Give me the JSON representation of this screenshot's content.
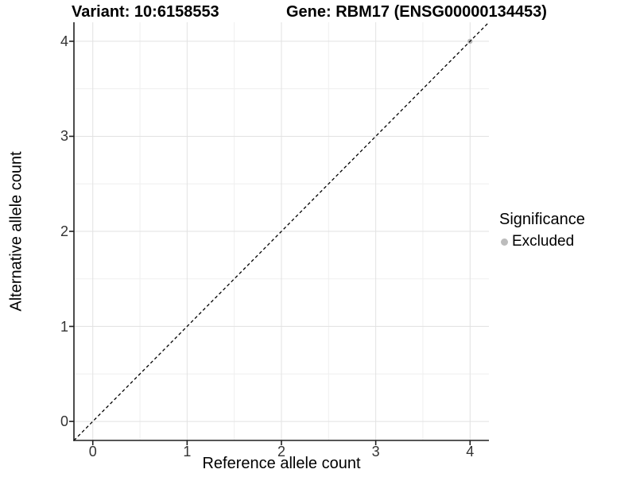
{
  "header": {
    "title_left": "Variant: 10:6158553",
    "title_right": "Gene: RBM17 (ENSG00000134453)"
  },
  "axes": {
    "x_label": "Reference allele count",
    "y_label": "Alternative allele count"
  },
  "legend": {
    "title": "Significance",
    "items": [
      {
        "label": "Excluded",
        "color": "#bcbcbc"
      }
    ]
  },
  "colors": {
    "background": "#ffffff",
    "grid_major": "#e2e2e2",
    "grid_minor": "#efefef",
    "axis_line": "#1f1f1f",
    "tick_mark": "#1f1f1f",
    "tick_label": "#333333",
    "diagonal_line": "#000000",
    "point_excluded": "#b9b9b9"
  },
  "chart_data": {
    "type": "scatter",
    "title": "Variant: 10:6158553   Gene: RBM17 (ENSG00000134453)",
    "xlabel": "Reference allele count",
    "ylabel": "Alternative allele count",
    "xlim": [
      -0.2,
      4.2
    ],
    "ylim": [
      -0.2,
      4.2
    ],
    "x_ticks": [
      0,
      1,
      2,
      3,
      4
    ],
    "y_ticks": [
      0,
      1,
      2,
      3,
      4
    ],
    "x_minor_ticks": [
      0.5,
      1.5,
      2.5,
      3.5
    ],
    "y_minor_ticks": [
      0.5,
      1.5,
      2.5,
      3.5
    ],
    "grid": true,
    "legend_position": "right",
    "legend_title": "Significance",
    "series": [
      {
        "name": "Excluded",
        "color": "#b9b9b9",
        "points": [
          {
            "x": 4,
            "y": 4
          }
        ]
      }
    ],
    "reference_line": {
      "kind": "identity",
      "slope": 1,
      "intercept": 0,
      "style": "dashed",
      "color": "#000000"
    }
  }
}
